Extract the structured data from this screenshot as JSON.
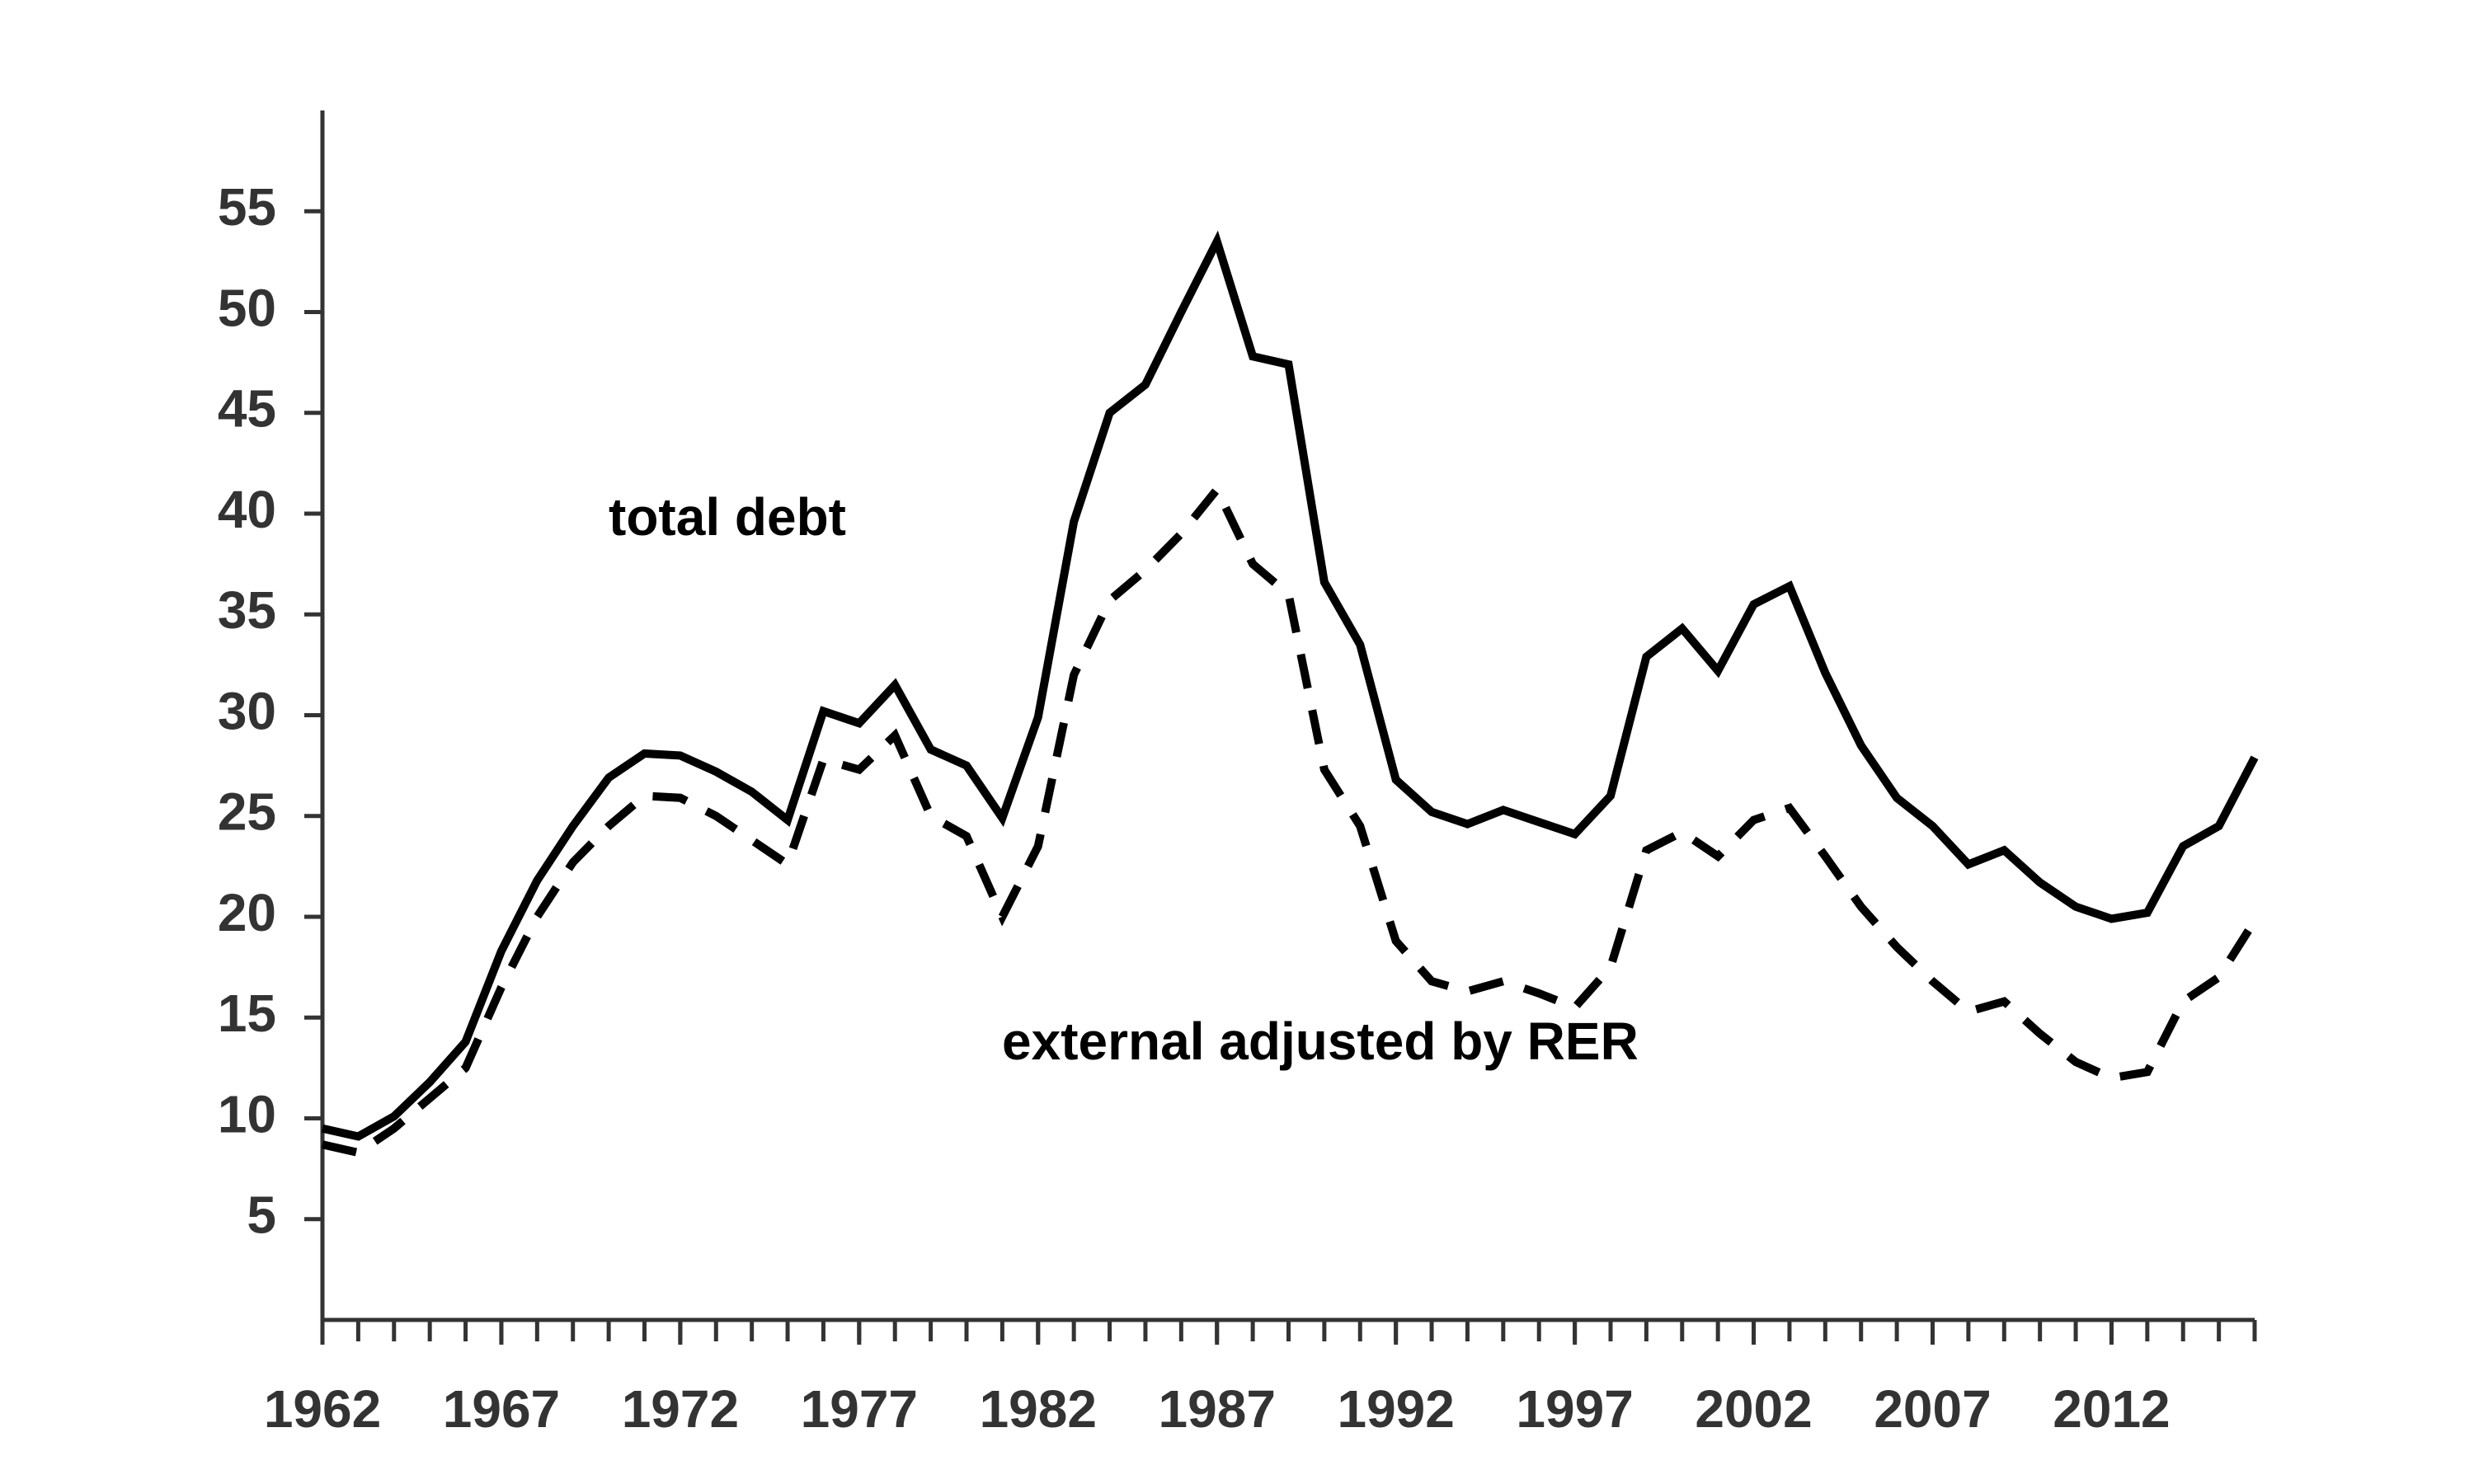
{
  "chart_data": {
    "type": "line",
    "x": [
      1962,
      1963,
      1964,
      1965,
      1966,
      1967,
      1968,
      1969,
      1970,
      1971,
      1972,
      1973,
      1974,
      1975,
      1976,
      1977,
      1978,
      1979,
      1980,
      1981,
      1982,
      1983,
      1984,
      1985,
      1986,
      1987,
      1988,
      1989,
      1990,
      1991,
      1992,
      1993,
      1994,
      1995,
      1996,
      1997,
      1998,
      1999,
      2000,
      2001,
      2002,
      2003,
      2004,
      2005,
      2006,
      2007,
      2008,
      2009,
      2010,
      2011,
      2012,
      2013,
      2014,
      2015,
      2016
    ],
    "series": [
      {
        "name": "total debt",
        "color": "#000000",
        "dash": false,
        "values": [
          9.5,
          9.1,
          10.1,
          11.8,
          13.8,
          18.3,
          21.8,
          24.5,
          26.9,
          28.1,
          28.0,
          27.2,
          26.2,
          24.8,
          30.2,
          29.6,
          31.5,
          28.3,
          27.5,
          24.9,
          29.9,
          39.6,
          45.0,
          46.4,
          50.0,
          53.5,
          47.8,
          47.4,
          36.6,
          33.5,
          26.8,
          25.2,
          24.6,
          25.3,
          24.7,
          24.1,
          26.0,
          32.9,
          34.3,
          32.2,
          35.5,
          36.4,
          32.1,
          28.5,
          25.9,
          24.5,
          22.6,
          23.3,
          21.7,
          20.5,
          19.9,
          20.2,
          23.5,
          24.5,
          27.9
        ]
      },
      {
        "name": "external adjusted by RER",
        "color": "#000000",
        "dash": true,
        "values": [
          8.7,
          8.3,
          9.5,
          11.0,
          12.5,
          16.5,
          20.0,
          22.7,
          24.5,
          26.0,
          25.9,
          25.0,
          23.8,
          22.6,
          27.8,
          27.3,
          29.0,
          25.0,
          24.0,
          20.0,
          23.5,
          32.0,
          35.7,
          37.2,
          39.0,
          41.2,
          37.5,
          36.0,
          27.3,
          24.5,
          18.8,
          16.8,
          16.3,
          16.8,
          16.2,
          15.5,
          17.5,
          23.3,
          24.2,
          23.0,
          24.8,
          25.4,
          23.0,
          20.5,
          18.5,
          16.8,
          15.3,
          15.8,
          14.2,
          12.8,
          12.0,
          12.3,
          15.8,
          17.0,
          19.8
        ]
      }
    ],
    "xlim": [
      1962,
      2016
    ],
    "xticks": [
      1962,
      1967,
      1972,
      1977,
      1982,
      1987,
      1992,
      1997,
      2002,
      2007,
      2012
    ],
    "ylim": [
      0,
      60
    ],
    "yticks": [
      5,
      10,
      15,
      20,
      25,
      30,
      35,
      40,
      45,
      50,
      55
    ],
    "grid": false
  }
}
